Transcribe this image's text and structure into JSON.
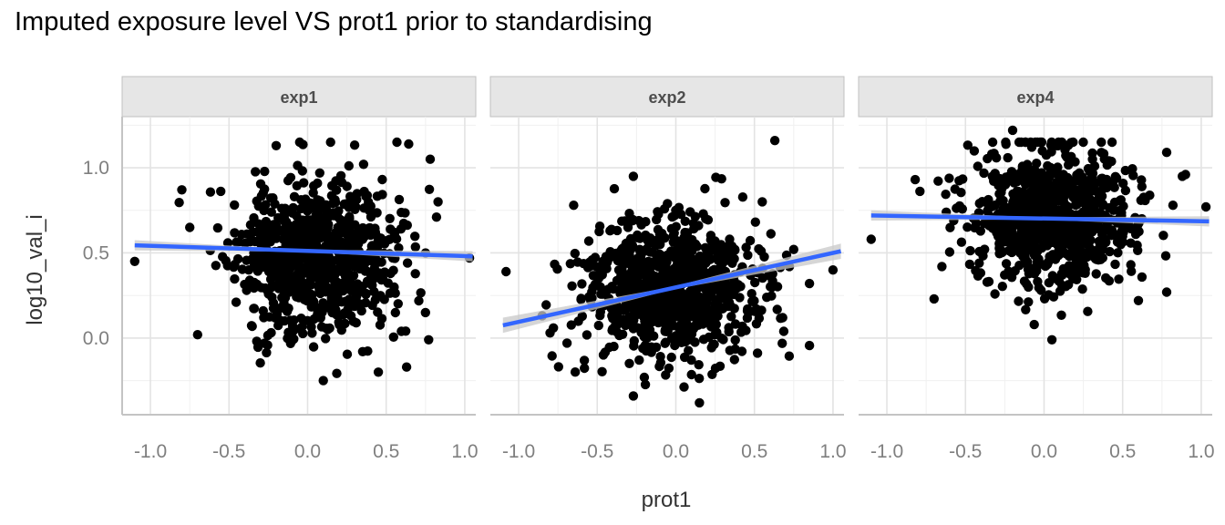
{
  "chart_data": {
    "type": "scatter",
    "title": "Imputed exposure level VS prot1 prior to standardising",
    "xlabel": "prot1",
    "ylabel": "log10_val_i",
    "xlim": [
      -1.18,
      1.07
    ],
    "ylim": [
      -0.45,
      1.3
    ],
    "x_ticks": [
      -1.0,
      -0.5,
      0.0,
      0.5,
      1.0
    ],
    "x_tick_labels": [
      "-1.0",
      "-0.5",
      "0.0",
      "0.5",
      "1.0"
    ],
    "y_ticks": [
      0.0,
      0.5,
      1.0
    ],
    "y_tick_labels": [
      "0.0",
      "0.5",
      "1.0"
    ],
    "grid": true,
    "point_color": "#000000",
    "fit_line_color": "#3366FF",
    "ci_band_color": "#c8c8c8",
    "strip_fill": "#e6e6e6",
    "panels": [
      {
        "label": "exp1",
        "fit": {
          "x": [
            -1.1,
            1.05
          ],
          "y": [
            0.545,
            0.48
          ]
        },
        "ci_halfwidth": [
          0.03,
          0.006,
          0.03
        ],
        "cloud": {
          "n": 850,
          "cx": 0.05,
          "cy": 0.48,
          "sx": 0.25,
          "sy": 0.22,
          "seed": 11
        },
        "outliers": [
          {
            "x": -1.1,
            "y": 0.45
          },
          {
            "x": 1.03,
            "y": 0.47
          },
          {
            "x": 0.78,
            "y": 1.05
          },
          {
            "x": -0.8,
            "y": 0.87
          },
          {
            "x": 0.83,
            "y": 0.8
          },
          {
            "x": 0.82,
            "y": 0.71
          },
          {
            "x": -0.2,
            "y": 1.13
          },
          {
            "x": 0.1,
            "y": -0.25
          },
          {
            "x": 0.45,
            "y": -0.2
          },
          {
            "x": 0.63,
            "y": -0.17
          },
          {
            "x": 0.77,
            "y": -0.01
          },
          {
            "x": -0.7,
            "y": 0.02
          },
          {
            "x": 0.75,
            "y": 0.15
          },
          {
            "x": -0.75,
            "y": 0.65
          }
        ]
      },
      {
        "label": "exp2",
        "fit": {
          "x": [
            -1.1,
            1.05
          ],
          "y": [
            0.075,
            0.51
          ]
        },
        "ci_halfwidth": [
          0.045,
          0.008,
          0.045
        ],
        "cloud": {
          "n": 850,
          "cx": -0.05,
          "cy": 0.28,
          "sx": 0.27,
          "sy": 0.2,
          "seed": 23
        },
        "outliers": [
          {
            "x": -1.08,
            "y": 0.39
          },
          {
            "x": 1.0,
            "y": 0.4
          },
          {
            "x": 0.63,
            "y": 1.16
          },
          {
            "x": -0.27,
            "y": 0.95
          },
          {
            "x": 0.15,
            "y": -0.38
          },
          {
            "x": -0.27,
            "y": -0.34
          },
          {
            "x": 0.85,
            "y": 0.32
          },
          {
            "x": -0.8,
            "y": 0.03
          },
          {
            "x": 0.68,
            "y": 0.12
          },
          {
            "x": -0.65,
            "y": 0.78
          },
          {
            "x": 0.55,
            "y": 0.8
          },
          {
            "x": 0.75,
            "y": 0.52
          }
        ]
      },
      {
        "label": "exp4",
        "fit": {
          "x": [
            -1.1,
            1.05
          ],
          "y": [
            0.72,
            0.685
          ]
        },
        "ci_halfwidth": [
          0.03,
          0.006,
          0.03
        ],
        "cloud": {
          "n": 850,
          "cx": 0.05,
          "cy": 0.72,
          "sx": 0.25,
          "sy": 0.2,
          "seed": 37
        },
        "outliers": [
          {
            "x": -1.1,
            "y": 0.58
          },
          {
            "x": 1.03,
            "y": 0.77
          },
          {
            "x": -0.2,
            "y": 1.22
          },
          {
            "x": 0.05,
            "y": -0.01
          },
          {
            "x": 0.78,
            "y": 1.09
          },
          {
            "x": 0.88,
            "y": 0.95
          },
          {
            "x": 0.78,
            "y": 0.27
          },
          {
            "x": -0.7,
            "y": 0.23
          },
          {
            "x": -0.65,
            "y": 0.42
          },
          {
            "x": 0.82,
            "y": 0.78
          },
          {
            "x": -0.82,
            "y": 0.93
          },
          {
            "x": 0.6,
            "y": 0.22
          },
          {
            "x": 0.9,
            "y": 0.96
          }
        ]
      }
    ]
  }
}
